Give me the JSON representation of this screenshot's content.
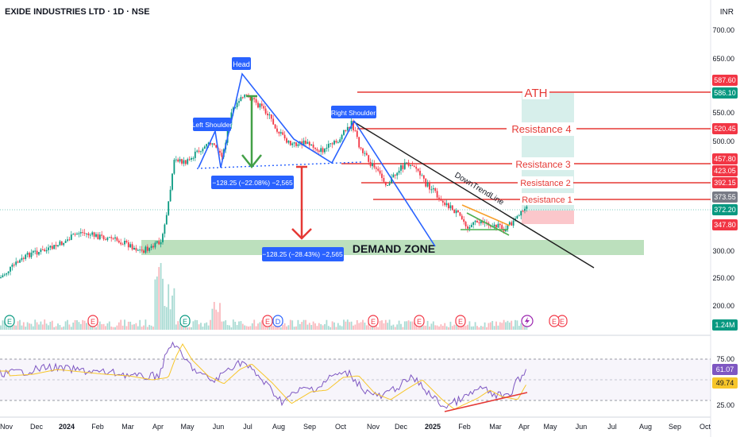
{
  "header": {
    "title": "EXIDE INDUSTRIES LTD · 1D · NSE",
    "currency": "INR"
  },
  "price_axis": {
    "ticks": [
      "700.00",
      "650.00",
      "550.00",
      "500.00",
      "300.00",
      "250.00",
      "200.00"
    ],
    "tags": [
      {
        "text": "587.60",
        "color": "#f23645"
      },
      {
        "text": "586.10",
        "color": "#089981"
      },
      {
        "text": "520.45",
        "color": "#f23645"
      },
      {
        "text": "457.80",
        "color": "#f23645"
      },
      {
        "text": "423.05",
        "color": "#f23645"
      },
      {
        "text": "392.15",
        "color": "#f23645"
      },
      {
        "text": "373.55",
        "color": "#787b86"
      },
      {
        "text": "372.20",
        "color": "#089981"
      },
      {
        "text": "347.80",
        "color": "#f23645"
      },
      {
        "text": "1.24M",
        "color": "#089981"
      }
    ]
  },
  "rsi_axis": {
    "ticks": [
      "75.00",
      "25.00"
    ],
    "tags": [
      {
        "text": "61.07",
        "color": "#7e57c2"
      },
      {
        "text": "49.74",
        "color": "#f7c62b"
      }
    ]
  },
  "time_axis": {
    "labels": [
      "Nov",
      "Dec",
      "2024",
      "Feb",
      "Mar",
      "Apr",
      "May",
      "Jun",
      "Jul",
      "Aug",
      "Sep",
      "Oct",
      "Nov",
      "Dec",
      "2025",
      "Feb",
      "Mar",
      "Apr",
      "May",
      "Jun",
      "Jul",
      "Aug",
      "Sep",
      "Oct"
    ]
  },
  "annotations": {
    "head": "Head",
    "left_shoulder": "Left Shoulder",
    "right_shoulder": "Right Shoulder",
    "measure_1": "−128.25 (−22.08%) −2,565",
    "measure_2": "−128.25 (−28.43%) −2,565",
    "demand_zone": "DEMAND ZONE",
    "downtrend": "DownTrendLine",
    "ath": "ATH",
    "resistance_4": "Resistance 4",
    "resistance_3": "Resistance 3",
    "resistance_2": "Resistance 2",
    "resistance_1": "Resistance 1"
  },
  "event_markers": [
    "E",
    "E",
    "E",
    "E",
    "D",
    "E",
    "E",
    "E",
    "E",
    "E"
  ],
  "colors": {
    "up": "#089981",
    "down": "#f23645",
    "resistance": "#e53935",
    "neckline": "#1e53e5",
    "demand": "#a5d6a7",
    "rsi": "#7e57c2",
    "rsi_ma": "#f7c62b",
    "label_bg": "#2962ff"
  }
}
